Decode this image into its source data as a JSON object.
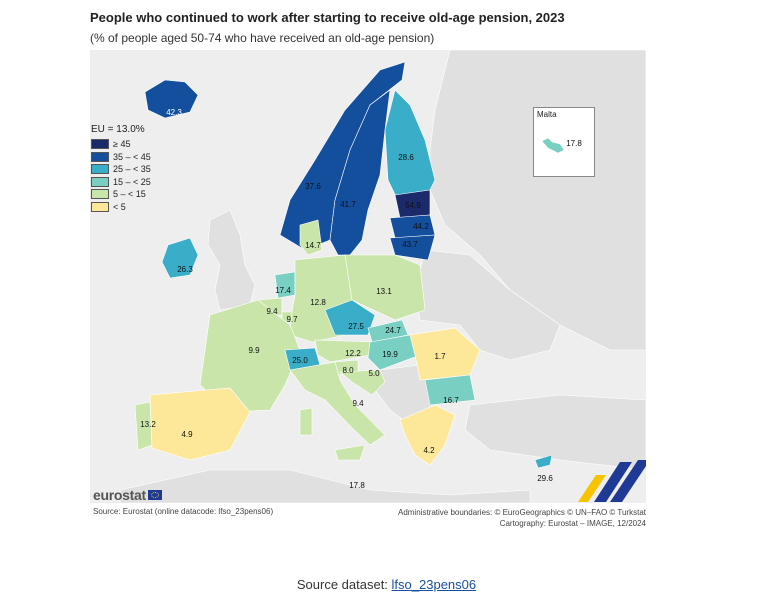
{
  "title": "People who continued to work after starting to receive old-age pension, 2023",
  "subtitle": "(% of people aged 50-74 who have received an old-age pension)",
  "legend": {
    "title": "EU = 13.0%",
    "classes": [
      {
        "label": "≥ 45",
        "color": "#1b2a6b"
      },
      {
        "label": "35 – < 45",
        "color": "#144f9e"
      },
      {
        "label": "25 – < 35",
        "color": "#3aadc9"
      },
      {
        "label": "15 – < 25",
        "color": "#78cfc2"
      },
      {
        "label": "5 – < 15",
        "color": "#c9e5a9"
      },
      {
        "label": "< 5",
        "color": "#fde89a"
      }
    ]
  },
  "countries": [
    {
      "code": "IS",
      "value": "42.3",
      "color": "#144f9e"
    },
    {
      "code": "NO",
      "value": "37.6",
      "color": "#144f9e"
    },
    {
      "code": "SE",
      "value": "41.7",
      "color": "#144f9e"
    },
    {
      "code": "FI",
      "value": "28.6",
      "color": "#3aadc9"
    },
    {
      "code": "EE",
      "value": "54.9",
      "color": "#1b2a6b"
    },
    {
      "code": "LV",
      "value": "44.2",
      "color": "#144f9e"
    },
    {
      "code": "LT",
      "value": "43.7",
      "color": "#144f9e"
    },
    {
      "code": "DK",
      "value": "14.7",
      "color": "#c9e5a9"
    },
    {
      "code": "IE",
      "value": "26.3",
      "color": "#3aadc9"
    },
    {
      "code": "NL",
      "value": "17.4",
      "color": "#78cfc2"
    },
    {
      "code": "BE",
      "value": "9.4",
      "color": "#c9e5a9"
    },
    {
      "code": "LU",
      "value": "9.7",
      "color": "#c9e5a9"
    },
    {
      "code": "DE",
      "value": "12.8",
      "color": "#c9e5a9"
    },
    {
      "code": "PL",
      "value": "13.1",
      "color": "#c9e5a9"
    },
    {
      "code": "CZ",
      "value": "27.5",
      "color": "#3aadc9"
    },
    {
      "code": "SK",
      "value": "24.7",
      "color": "#78cfc2"
    },
    {
      "code": "FR",
      "value": "9.9",
      "color": "#c9e5a9"
    },
    {
      "code": "CH",
      "value": "25.0",
      "color": "#3aadc9"
    },
    {
      "code": "AT",
      "value": "12.2",
      "color": "#c9e5a9"
    },
    {
      "code": "HU",
      "value": "19.9",
      "color": "#78cfc2"
    },
    {
      "code": "RO",
      "value": "1.7",
      "color": "#fde89a"
    },
    {
      "code": "SI",
      "value": "8.0",
      "color": "#c9e5a9"
    },
    {
      "code": "HR",
      "value": "5.0",
      "color": "#c9e5a9"
    },
    {
      "code": "IT",
      "value": "9.4",
      "color": "#c9e5a9"
    },
    {
      "code": "BG",
      "value": "16.7",
      "color": "#78cfc2"
    },
    {
      "code": "PT",
      "value": "13.2",
      "color": "#c9e5a9"
    },
    {
      "code": "ES",
      "value": "4.9",
      "color": "#fde89a"
    },
    {
      "code": "EL",
      "value": "4.2",
      "color": "#fde89a"
    },
    {
      "code": "MT",
      "value": "17.8",
      "color": "#78cfc2"
    },
    {
      "code": "CY",
      "value": "29.6",
      "color": "#3aadc9"
    }
  ],
  "no_data_color": "#e0e0e0",
  "sea_color": "#ffffff",
  "inset_title": "Malta",
  "malta_value": "17.8",
  "logo_text": "eurostat",
  "source_left": "Source: Eurostat (online datacode: lfso_23pens06)",
  "source_right_1": "Administrative boundaries: © EuroGeographics © UN–FAO © Turkstat",
  "source_right_2": "Cartography: Eurostat – IMAGE, 12/2024",
  "footer_prefix": "Source dataset:",
  "footer_link": "lfso_23pens06"
}
